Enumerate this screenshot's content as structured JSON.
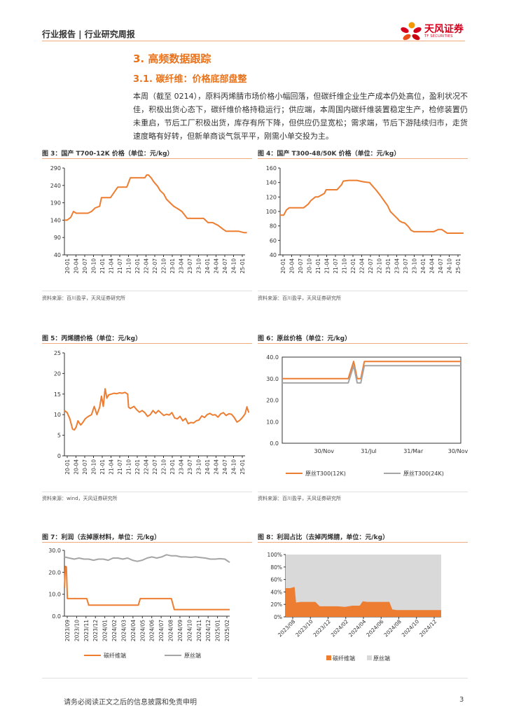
{
  "header": {
    "report_type": "行业报告 | 行业研究周报",
    "brand": "天风证券",
    "brand_sub": "TF SECURITIES"
  },
  "section_title": "3. 高频数据跟踪",
  "subsection_title": "3.1. 碳纤维：价格底部盘整",
  "paragraph": "本周（截至 0214），原料丙烯腈市场价格小幅回落，但碳纤维企业生产成本仍处高位，盈利状况不佳，积极出货心态下，碳纤维价格持稳运行；供应端，本周国内碳纤维装置稳定生产，检修装置仍未重启，节后工厂积极出货，库存有所下降，但供应仍显宽松；需求端，节后下游陆续归市，走货速度略有好转，但新单商谈气氛平平，刚需小单交投为主。",
  "colors": {
    "orange": "#ed7d31",
    "gray": "#a5a5a5",
    "light_gray": "#d9d9d9"
  },
  "figures": {
    "fig3": {
      "caption": "图 3：国产 T700-12K 价格（单位：元/kg）",
      "source": "资料来源：百川盈孚，天风证券研究所"
    },
    "fig4": {
      "caption": "图 4：国产 T300-48/50K 价格（单位：元/kg）",
      "source": "资料来源：百川盈孚，天风证券研究所"
    },
    "fig5": {
      "caption": "图 5：丙烯腈价格（单位：元/kg）",
      "source": "资料来源：wind，天风证券研究所"
    },
    "fig6": {
      "caption": "图 6：原丝价格（单位：元/kg）",
      "source": "资料来源：百川盈孚，天风证券研究所"
    },
    "fig7": {
      "caption": "图 7：利润（去掉原材料，单位：元/kg）"
    },
    "fig8": {
      "caption": "图 8：利润占比（去掉丙烯腈，单位：元/kg）"
    }
  },
  "chart_data": [
    {
      "id": "fig3",
      "type": "line",
      "yticks": [
        "290",
        "240",
        "190",
        "140",
        "90",
        "40"
      ],
      "ylim": [
        40,
        290
      ],
      "xticks": [
        "20-01",
        "20-04",
        "20-07",
        "20-10",
        "21-01",
        "21-04",
        "21-07",
        "21-10",
        "22-01",
        "22-04",
        "22-07",
        "22-10",
        "23-01",
        "23-04",
        "23-07",
        "23-10",
        "24-01",
        "24-04",
        "24-07",
        "24-10",
        "25-01"
      ],
      "series": [
        {
          "color": "#ed7d31",
          "x": [
            0,
            0.3,
            0.7,
            1,
            1.3,
            1.6,
            2,
            2.6,
            3,
            3.4,
            3.9,
            4.1,
            4.8,
            5.1,
            5.9,
            6.2,
            6.9,
            7.3,
            8,
            8.4,
            8.9,
            9.1,
            9.3,
            9.6,
            9.9,
            10.3,
            10.6,
            11,
            11.3,
            11.7,
            12.1,
            12.6,
            13,
            13.6,
            14,
            14.5,
            15,
            15.4,
            15.9,
            16.4,
            17,
            17.5,
            17.9,
            18.3,
            18.8,
            19.3,
            19.9,
            20.2
          ],
          "y": [
            140,
            140,
            148,
            165,
            160,
            160,
            160,
            160,
            165,
            175,
            180,
            205,
            205,
            205,
            235,
            235,
            235,
            262,
            262,
            262,
            262,
            270,
            270,
            262,
            250,
            238,
            225,
            215,
            200,
            190,
            180,
            172,
            165,
            145,
            145,
            145,
            145,
            145,
            133,
            133,
            125,
            115,
            108,
            108,
            108,
            108,
            104,
            104
          ]
        }
      ]
    },
    {
      "id": "fig4",
      "type": "line",
      "yticks": [
        "160",
        "140",
        "120",
        "100",
        "80",
        "60",
        "40"
      ],
      "ylim": [
        40,
        160
      ],
      "xticks": [
        "20-01",
        "20-04",
        "20-07",
        "20-10",
        "21-01",
        "21-04",
        "21-07",
        "21-10",
        "22-01",
        "22-04",
        "22-07",
        "22-10",
        "23-01",
        "23-04",
        "23-07",
        "23-10",
        "24-01",
        "24-04",
        "24-07",
        "24-10",
        "25-01"
      ],
      "series": [
        {
          "color": "#ed7d31",
          "x": [
            0,
            0.4,
            0.7,
            1,
            1.4,
            2,
            2.6,
            3.1,
            3.4,
            3.9,
            4.2,
            4.9,
            5.1,
            6,
            6.3,
            6.8,
            7,
            7.6,
            8.5,
            9.2,
            9.9,
            10.1,
            10.6,
            11.1,
            11.5,
            11.9,
            12.2,
            12.6,
            13,
            13.2,
            13.5,
            13.8,
            14.2,
            14.5,
            14.8,
            15,
            15.4,
            16,
            16.5,
            17,
            17.5,
            17.9,
            18.5,
            19,
            19.5,
            20,
            20.3
          ],
          "y": [
            95,
            95,
            102,
            105,
            105,
            105,
            105,
            110,
            115,
            120,
            120,
            125,
            130,
            130,
            130,
            137,
            142,
            143,
            143,
            141,
            140,
            137,
            130,
            122,
            115,
            108,
            100,
            95,
            90,
            87,
            85,
            84,
            79,
            74,
            72,
            72,
            72,
            72,
            72,
            72,
            75,
            75,
            70,
            70,
            70,
            70,
            70
          ]
        }
      ]
    },
    {
      "id": "fig5",
      "type": "line",
      "yticks": [
        "25",
        "20",
        "15",
        "10",
        "5",
        "0"
      ],
      "ylim": [
        0,
        25
      ],
      "xticks": [
        "20-01",
        "20-04",
        "20-07",
        "20-10",
        "21-01",
        "21-04",
        "21-07",
        "21-10",
        "22-01",
        "22-04",
        "22-07",
        "22-10",
        "23-01",
        "23-04",
        "23-07",
        "23-10",
        "24-01",
        "24-04",
        "24-07",
        "24-10",
        "25-01"
      ],
      "series": [
        {
          "color": "#ed7d31",
          "x": [
            0,
            0.3,
            0.6,
            0.9,
            1.1,
            1.3,
            1.5,
            1.8,
            2,
            2.3,
            2.6,
            3,
            3.3,
            3.6,
            3.9,
            4.1,
            4.3,
            4.5,
            4.7,
            4.9,
            5.2,
            5.5,
            5.8,
            6.1,
            6.4,
            6.7,
            7,
            7.1,
            7.3,
            7.7,
            8,
            8.3,
            8.6,
            8.9,
            9.2,
            9.5,
            9.8,
            10.1,
            10.4,
            10.7,
            11,
            11.3,
            11.6,
            11.9,
            12.2,
            12.5,
            12.8,
            13.1,
            13.4,
            13.7,
            14,
            14.3,
            14.6,
            14.9,
            15.2,
            15.5,
            15.8,
            16.1,
            16.4,
            16.7,
            17,
            17.3,
            17.6,
            17.9,
            18.2,
            18.5,
            18.8,
            19.1,
            19.4,
            19.7,
            20,
            20.2,
            20.4
          ],
          "y": [
            11,
            10.5,
            9,
            6.5,
            6.3,
            7,
            8.5,
            7.5,
            8,
            9,
            9.5,
            10,
            12,
            10,
            11.8,
            14.5,
            12,
            16.3,
            14,
            14.8,
            15,
            15.2,
            15.1,
            15.3,
            15.2,
            15.4,
            15,
            11.8,
            11.5,
            12,
            11.2,
            10.6,
            11,
            10.5,
            9.6,
            10,
            11,
            10.3,
            11,
            10.4,
            9.8,
            10.1,
            9.9,
            10.5,
            9.2,
            9,
            9.6,
            8.5,
            9.1,
            7.8,
            8.1,
            8,
            8.5,
            8.7,
            9.7,
            9.3,
            10,
            10.3,
            9.9,
            10,
            9.4,
            10.2,
            10.5,
            9.8,
            10.2,
            10.1,
            9.3,
            8.2,
            8.6,
            9.3,
            10.2,
            11.9,
            10.5
          ]
        }
      ]
    },
    {
      "id": "fig6",
      "type": "line",
      "yticks": [
        "40.0",
        "30.0",
        "20.0",
        "10.0",
        "0.0"
      ],
      "ylim": [
        0,
        40
      ],
      "xticks": [
        "30/Nov",
        "31/Jul",
        "31/Mar",
        "30/Nov"
      ],
      "legend": [
        "原丝T300(12K)",
        "原丝T300(24K)"
      ],
      "series": [
        {
          "name": "原丝T300(12K)",
          "color": "#ed7d31",
          "x": [
            0,
            0.37,
            0.4,
            0.42,
            0.44,
            0.46,
            0.47,
            1
          ],
          "y": [
            30,
            30,
            38,
            30,
            30,
            38,
            38,
            38
          ]
        },
        {
          "name": "原丝T300(24K)",
          "color": "#a5a5a5",
          "x": [
            0,
            0.37,
            0.4,
            0.42,
            0.44,
            0.46,
            0.47,
            1
          ],
          "y": [
            28,
            28,
            36,
            28,
            28,
            36,
            36,
            36
          ]
        }
      ]
    },
    {
      "id": "fig7",
      "type": "line",
      "yticks": [
        "30.0",
        "20.0",
        "10.0",
        "0.0"
      ],
      "ylim": [
        0,
        30
      ],
      "xticks": [
        "2023/09",
        "2023/10",
        "2023/11",
        "2023/12",
        "2024/01",
        "2024/02",
        "2024/03",
        "2024/04",
        "2024/05",
        "2024/06",
        "2024/07",
        "2024/08",
        "2024/09",
        "2024/10",
        "2024/11",
        "2024/12",
        "2025/01",
        "2025/02"
      ],
      "legend": [
        "碳纤维端",
        "原丝端"
      ],
      "series": [
        {
          "name": "碳纤维端",
          "color": "#ed7d31",
          "x": [
            0,
            0.1,
            0.2,
            0.3,
            0.4,
            1,
            2,
            2.3,
            2.5,
            3,
            4,
            5,
            6,
            7,
            7.6,
            7.8,
            8,
            9,
            10,
            11,
            11.3,
            11.5,
            12,
            13,
            14,
            15,
            16,
            17
          ],
          "y": [
            13,
            22.7,
            22.5,
            8,
            8,
            8,
            8,
            8,
            5,
            5,
            5,
            5,
            5,
            5,
            5,
            8,
            8,
            8,
            8,
            8,
            3,
            3,
            3,
            3,
            3,
            3,
            3,
            3
          ]
        },
        {
          "name": "原丝端",
          "color": "#a5a5a5",
          "x": [
            0,
            0.5,
            1,
            1.5,
            2,
            2.5,
            3,
            3.5,
            4,
            4.5,
            5,
            5.5,
            6,
            6.5,
            7,
            7.5,
            8,
            8.5,
            9,
            9.5,
            10,
            10.5,
            11,
            11.5,
            12,
            12.5,
            13,
            13.5,
            14,
            14.5,
            15,
            15.5,
            16,
            16.5,
            17
          ],
          "y": [
            27,
            26.5,
            26,
            26.5,
            26,
            26,
            25.5,
            26,
            26,
            25.5,
            26.5,
            26.5,
            26,
            26.5,
            25.5,
            25,
            25.5,
            26.5,
            27,
            26.5,
            27,
            28,
            27.5,
            27.5,
            27,
            27,
            26.8,
            27,
            26.7,
            26.5,
            26,
            26,
            26.2,
            26,
            24.5
          ]
        }
      ]
    },
    {
      "id": "fig8",
      "type": "area",
      "yticks": [
        "100%",
        "80%",
        "60%",
        "40%",
        "20%",
        "0%"
      ],
      "ylim": [
        0,
        100
      ],
      "xticks": [
        "2023/08",
        "2023/10",
        "2023/12",
        "2024/02",
        "2024/04",
        "2024/06",
        "2024/08",
        "2024/10",
        "2024/12"
      ],
      "legend": [
        "碳纤维端",
        "原丝端"
      ],
      "series": [
        {
          "name": "碳纤维端",
          "color": "#ed7d31",
          "x": [
            0,
            0.3,
            0.6,
            0.7,
            1,
            1.5,
            2,
            2.3,
            2.5,
            3,
            3.5,
            4,
            4.5,
            5,
            5.2,
            5.5,
            6,
            6.5,
            7,
            7.2,
            7.5,
            8,
            8.5,
            9,
            9.5,
            10,
            10.5
          ],
          "y": [
            46,
            46,
            48,
            23,
            24,
            24,
            24,
            17,
            17,
            17,
            17,
            16,
            18,
            18,
            25,
            24,
            24,
            24,
            24,
            12,
            11,
            11,
            11,
            11,
            11,
            11,
            11
          ]
        },
        {
          "name": "原丝端",
          "color": "#d9d9d9",
          "x": [
            0,
            10.5
          ],
          "y": [
            100,
            100
          ]
        }
      ]
    }
  ],
  "footer": {
    "disclaimer": "请务必阅读正文之后的信息披露和免责申明",
    "page": "3"
  }
}
